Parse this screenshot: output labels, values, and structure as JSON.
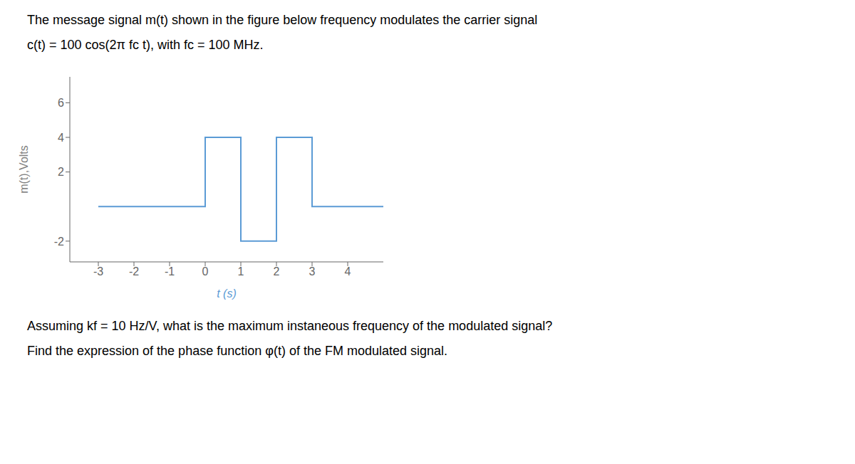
{
  "chart_data": {
    "type": "line",
    "title": "The message signal m(t) shown in the figure below frequency modulates the carrier signal",
    "annotations": [
      "c(t) = 100 cos(2π fc t), with fc = 100 MHz.",
      "Assuming kf = 10 Hz/V, what is the maximum instaneous frequency of the modulated signal?",
      "Find the expression of the phase function φ(t) of the FM modulated signal."
    ],
    "xlabel": "t (s)",
    "ylabel": "m(t),Volts",
    "x": [
      -3,
      0,
      0,
      1,
      1,
      2,
      2,
      3,
      3,
      5
    ],
    "values": [
      0,
      0,
      4,
      4,
      -2,
      -2,
      4,
      4,
      0,
      0
    ],
    "color": "#5b9bd5",
    "xlim": [
      -3.8,
      5.0
    ],
    "ylim": [
      -3.2,
      7.5
    ],
    "xticks": [
      -3,
      -2,
      -1,
      0,
      1,
      2,
      3,
      4
    ],
    "yticks": [
      -2,
      2,
      4,
      6
    ],
    "grid": false
  }
}
